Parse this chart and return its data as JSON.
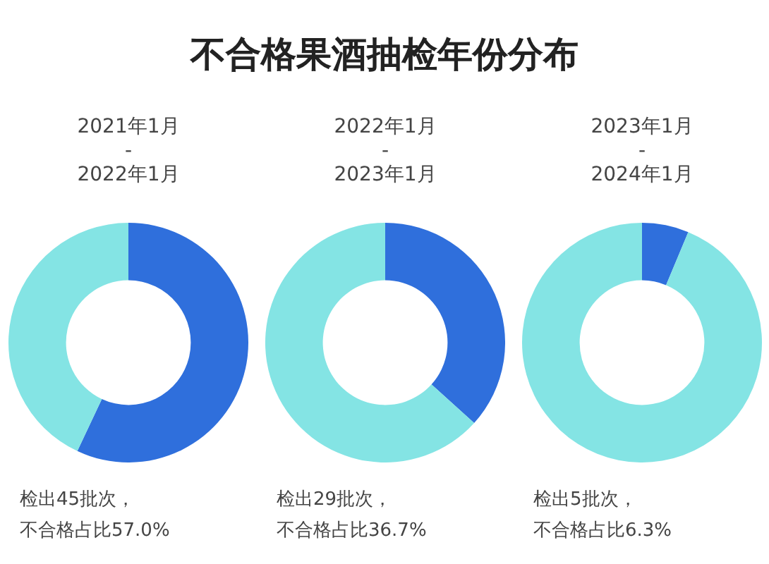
{
  "chart_data": [
    {
      "type": "donut",
      "title": "不合格果酒抽检年份分布",
      "subtitle": "2021年1月\n-\n2022年1月",
      "categories": [
        null,
        null
      ],
      "values": [
        57.0,
        43.0
      ],
      "colors": [
        "#2f6fdc",
        "#84e4e4"
      ],
      "annotations": [
        "检出45批次，",
        "不合格占比57.0%"
      ]
    },
    {
      "type": "donut",
      "subtitle": "2022年1月\n-\n2023年1月",
      "categories": [
        null,
        null
      ],
      "values": [
        36.7,
        63.3
      ],
      "colors": [
        "#2f6fdc",
        "#84e4e4"
      ],
      "annotations": [
        "检出29批次，",
        "不合格占比36.7%"
      ]
    },
    {
      "type": "donut",
      "subtitle": "2023年1月\n-\n2024年1月",
      "categories": [
        null,
        null
      ],
      "values": [
        6.3,
        93.7
      ],
      "colors": [
        "#2f6fdc",
        "#84e4e4"
      ],
      "annotations": [
        "检出5批次，",
        "不合格占比6.3%"
      ]
    }
  ]
}
